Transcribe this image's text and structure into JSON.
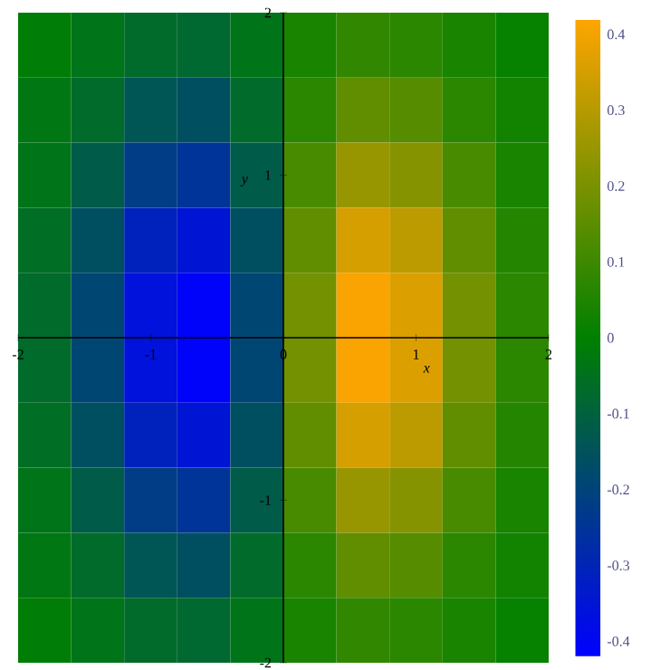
{
  "chart_data": {
    "type": "heatmap",
    "xlabel": "x",
    "ylabel": "y",
    "xlim": [
      -2,
      2
    ],
    "ylim": [
      -2,
      2
    ],
    "xticks": [
      -2,
      -1,
      0,
      1,
      2
    ],
    "yticks": [
      -2,
      -1,
      1,
      2
    ],
    "cells": [
      [
        -0.01,
        -0.04,
        -0.07,
        -0.08,
        -0.04,
        0.04,
        0.08,
        0.07,
        0.04,
        0.01
      ],
      [
        -0.03,
        -0.07,
        -0.14,
        -0.16,
        -0.07,
        0.07,
        0.16,
        0.14,
        0.07,
        0.03
      ],
      [
        -0.04,
        -0.12,
        -0.22,
        -0.25,
        -0.12,
        0.12,
        0.25,
        0.22,
        0.12,
        0.04
      ],
      [
        -0.06,
        -0.16,
        -0.31,
        -0.35,
        -0.16,
        0.16,
        0.35,
        0.31,
        0.16,
        0.06
      ],
      [
        -0.07,
        -0.19,
        -0.36,
        -0.41,
        -0.19,
        0.19,
        0.41,
        0.36,
        0.19,
        0.07
      ],
      [
        -0.07,
        -0.19,
        -0.36,
        -0.41,
        -0.19,
        0.19,
        0.41,
        0.36,
        0.19,
        0.07
      ],
      [
        -0.06,
        -0.16,
        -0.31,
        -0.35,
        -0.16,
        0.16,
        0.35,
        0.31,
        0.16,
        0.06
      ],
      [
        -0.04,
        -0.12,
        -0.22,
        -0.25,
        -0.12,
        0.12,
        0.25,
        0.22,
        0.12,
        0.04
      ],
      [
        -0.03,
        -0.07,
        -0.14,
        -0.16,
        -0.07,
        0.07,
        0.16,
        0.14,
        0.07,
        0.03
      ],
      [
        -0.01,
        -0.04,
        -0.07,
        -0.08,
        -0.04,
        0.04,
        0.08,
        0.07,
        0.04,
        0.01
      ]
    ],
    "clim": [
      -0.42,
      0.42
    ],
    "cticks": [
      -0.4,
      -0.3,
      -0.2,
      -0.1,
      0,
      0.1,
      0.2,
      0.3,
      0.4
    ]
  }
}
